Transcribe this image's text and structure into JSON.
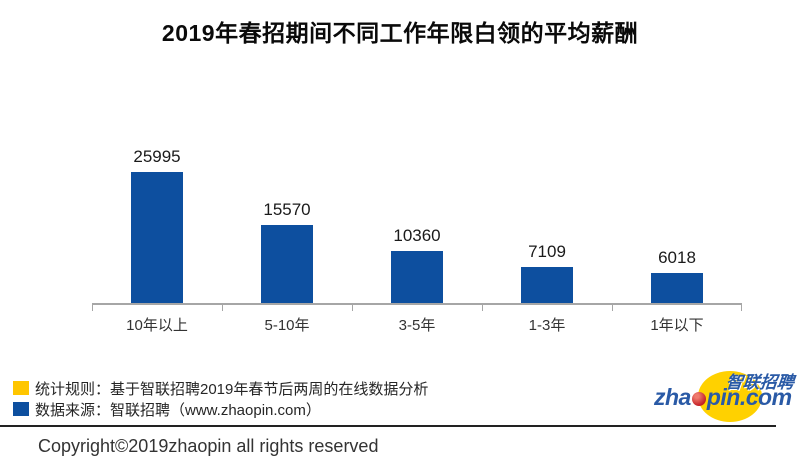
{
  "title": "2019年春招期间不同工作年限白领的平均薪酬",
  "chart_data": {
    "type": "bar",
    "title": "2019年春招期间不同工作年限白领的平均薪酬",
    "categories": [
      "10年以上",
      "5-10年",
      "3-5年",
      "1-3年",
      "1年以下"
    ],
    "values": [
      25995,
      15570,
      10360,
      7109,
      6018
    ],
    "xlabel": "",
    "ylabel": "",
    "ylim": [
      0,
      26000
    ],
    "grid": false,
    "legend_position": "none",
    "bar_color": "#0d4f9f",
    "axis_color": "#a6a6a6",
    "value_labels_shown": true
  },
  "legend": {
    "items": [
      {
        "color": "#ffc600",
        "label": "统计规则：基于智联招聘2019年春节后两周的在线数据分析"
      },
      {
        "color": "#0d4f9f",
        "label": "数据来源：智联招聘（www.zhaopin.com）"
      }
    ]
  },
  "footer": {
    "copyright": "Copyright©2019zhaopin all rights reserved"
  },
  "logo": {
    "cn": "智联招聘",
    "en_prefix": "zha",
    "en_suffix": "pin.com",
    "full_name": "zhaopin.com",
    "blue": "#2a5aa6",
    "yellow": "#ffd100",
    "red": "#c42127"
  }
}
